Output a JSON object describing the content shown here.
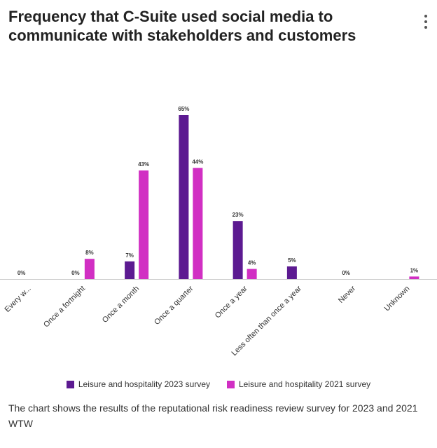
{
  "header": {
    "title_line1": "Frequency that C-Suite used social media to",
    "title_line2": "communicate with stakeholders and customers",
    "menu_icon": "more-vertical-icon"
  },
  "chart_data": {
    "type": "bar",
    "title": "Frequency that C-Suite used social media to communicate with stakeholders and customers",
    "categories": [
      "Every w...",
      "Once a fortnight",
      "Once a month",
      "Once a quarter",
      "Once a year",
      "Less often than once a year",
      "Never",
      "Unknown"
    ],
    "series": [
      {
        "name": "Leisure and hospitality 2023 survey",
        "color": "#5c1a91",
        "values": [
          0,
          0,
          7,
          65,
          23,
          5,
          0,
          null
        ],
        "labels": [
          "0%",
          "0%",
          "7%",
          "65%",
          "23%",
          "5%",
          "0%",
          null
        ]
      },
      {
        "name": "Leisure and hospitality 2021 survey",
        "color": "#d12fc3",
        "values": [
          null,
          8,
          43,
          44,
          4,
          null,
          null,
          1
        ],
        "labels": [
          null,
          "8%",
          "43%",
          "44%",
          "4%",
          null,
          null,
          "1%"
        ]
      }
    ],
    "ylim": [
      0,
      65
    ],
    "xlabel": "",
    "ylabel": "",
    "grid": false,
    "legend_position": "bottom"
  },
  "footer": {
    "caption_line1": "The chart shows the results of the reputational risk readiness review survey for 2023 and 2021",
    "caption_line2": "WTW"
  }
}
